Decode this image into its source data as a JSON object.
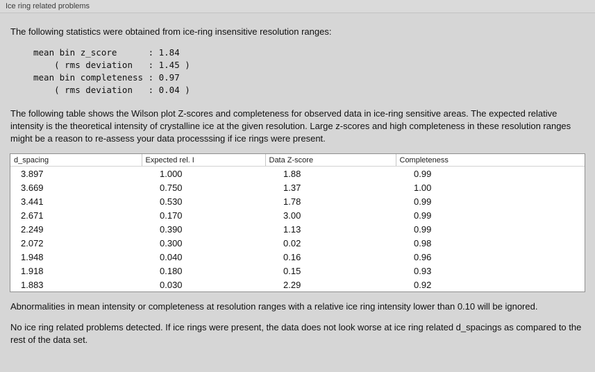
{
  "window": {
    "title": "Ice ring related problems"
  },
  "intro": "The following statistics were obtained from ice-ring insensitive resolution ranges:",
  "stats": {
    "lines": [
      "mean bin z_score      : 1.84",
      "    ( rms deviation   : 1.45 )",
      "mean bin completeness : 0.97",
      "    ( rms deviation   : 0.04 )"
    ]
  },
  "description": "The following table shows the Wilson plot Z-scores and completeness for observed data in ice-ring sensitive areas. The expected relative intensity is the theoretical intensity of crystalline ice at the given resolution. Large z-scores and high completeness in these resolution ranges might be a reason to re-assess your data processsing if ice rings were present.",
  "table": {
    "headers": [
      "d_spacing",
      "Expected rel. I",
      "Data Z-score",
      "Completeness"
    ],
    "rows": [
      [
        "3.897",
        "1.000",
        "1.88",
        "0.99"
      ],
      [
        "3.669",
        "0.750",
        "1.37",
        "1.00"
      ],
      [
        "3.441",
        "0.530",
        "1.78",
        "0.99"
      ],
      [
        "2.671",
        "0.170",
        "3.00",
        "0.99"
      ],
      [
        "2.249",
        "0.390",
        "1.13",
        "0.99"
      ],
      [
        "2.072",
        "0.300",
        "0.02",
        "0.98"
      ],
      [
        "1.948",
        "0.040",
        "0.16",
        "0.96"
      ],
      [
        "1.918",
        "0.180",
        "0.15",
        "0.93"
      ],
      [
        "1.883",
        "0.030",
        "2.29",
        "0.92"
      ]
    ]
  },
  "note_ignore": "Abnormalities in mean intensity or completeness at resolution ranges with a relative ice ring intensity lower than 0.10 will be ignored.",
  "conclusion": "No ice ring related problems detected. If ice rings were present, the data does not look worse at ice ring related d_spacings as compared to the rest of the data set."
}
